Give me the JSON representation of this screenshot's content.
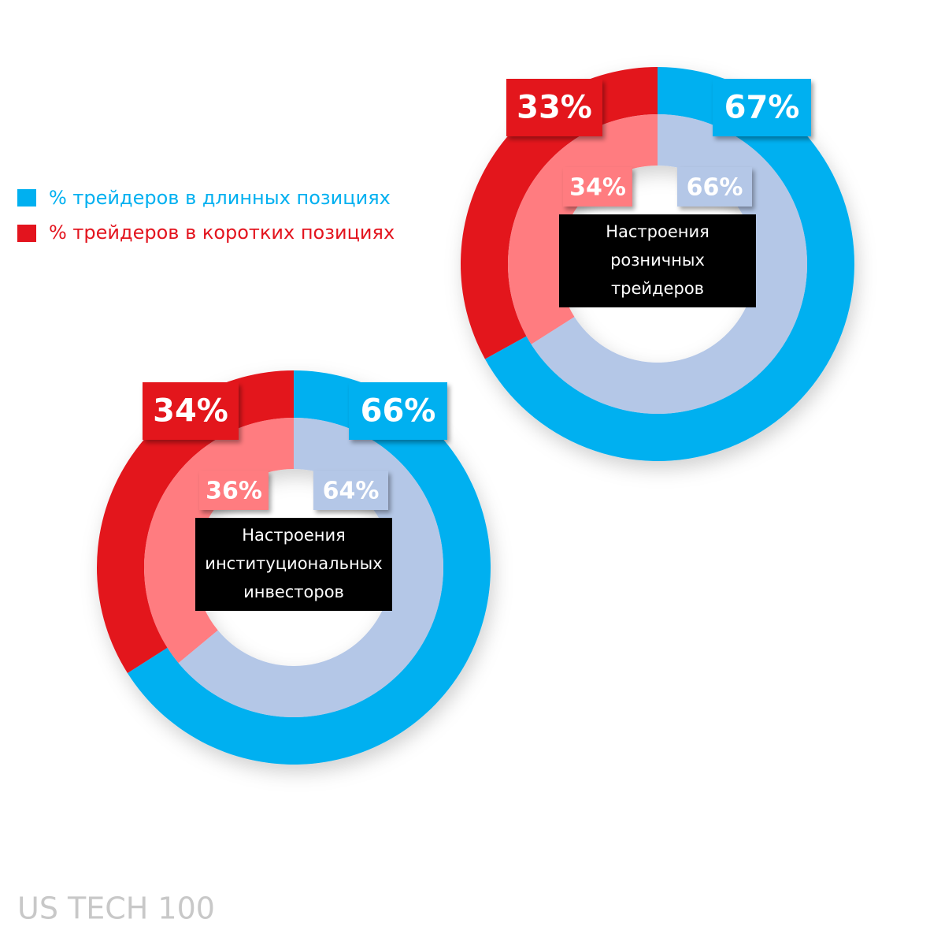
{
  "legend": [
    {
      "name": "% трейдеров в длинных позициях",
      "color": "#00b0f0"
    },
    {
      "name": "% трейдеров в коротких позициях",
      "color": "#e3141e"
    }
  ],
  "chart_data": [
    {
      "type": "donut",
      "title": [
        "Настроения",
        "розничных",
        "трейдеров"
      ],
      "series": [
        {
          "colors": [
            "#00b0f0",
            "#e3141e"
          ],
          "values": [
            67,
            33
          ],
          "value_labels": [
            "67%",
            "33%"
          ]
        },
        {
          "colors": [
            "#b4c7e7",
            "#ff7c80"
          ],
          "values": [
            66,
            34
          ],
          "value_labels": [
            "66%",
            "34%"
          ]
        }
      ]
    },
    {
      "type": "donut",
      "title": [
        "Настроения",
        "институциональных",
        "инвесторов"
      ],
      "series": [
        {
          "colors": [
            "#00b0f0",
            "#e3141e"
          ],
          "values": [
            66,
            34
          ],
          "value_labels": [
            "66%",
            "34%"
          ]
        },
        {
          "colors": [
            "#b4c7e7",
            "#ff7c80"
          ],
          "values": [
            64,
            36
          ],
          "value_labels": [
            "64%",
            "36%"
          ]
        }
      ]
    }
  ],
  "footer": "US TECH 100"
}
